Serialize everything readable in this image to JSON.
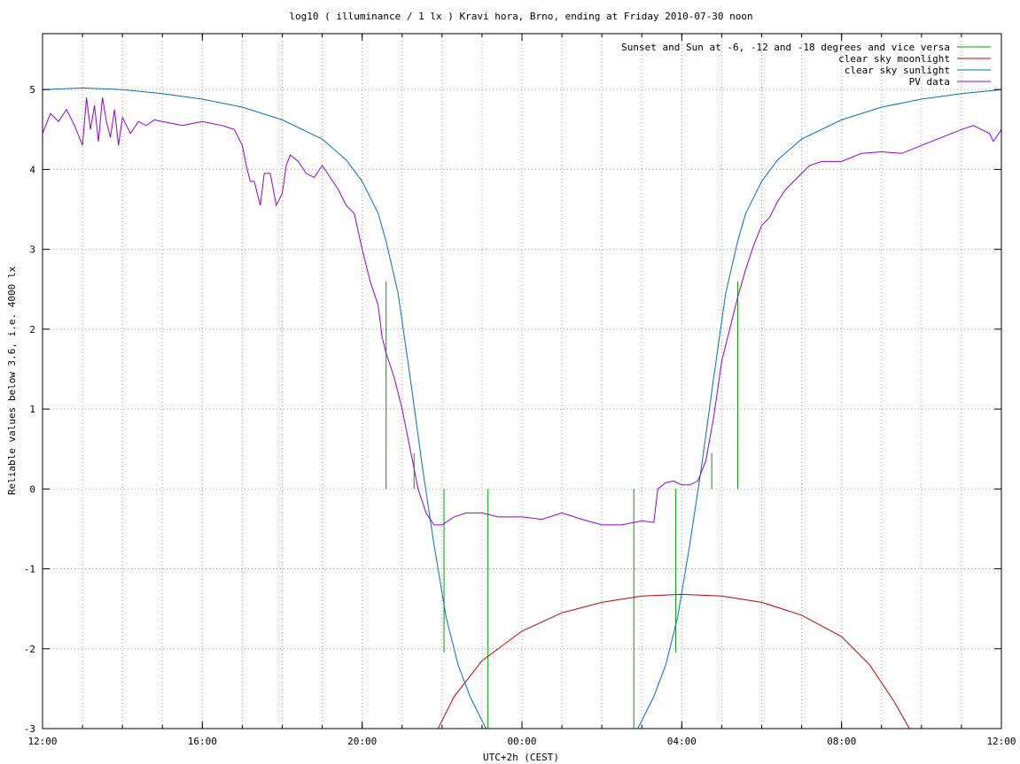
{
  "chart_data": {
    "type": "line",
    "title": "log10 ( illuminance / 1 lx ) Kravi hora, Brno, ending at Friday 2010-07-30 noon",
    "xlabel": "UTC+2h (CEST)",
    "ylabel": "Reliable values below 3.6, i.e. 4000 lx",
    "x_unit": "hour of day (12:00 to next-day 12:00)",
    "xlim": [
      12,
      36
    ],
    "ylim": [
      -3,
      5.7
    ],
    "x_ticks": [
      {
        "value": 12,
        "label": "12:00"
      },
      {
        "value": 16,
        "label": "16:00"
      },
      {
        "value": 20,
        "label": "20:00"
      },
      {
        "value": 24,
        "label": "00:00"
      },
      {
        "value": 28,
        "label": "04:00"
      },
      {
        "value": 32,
        "label": "08:00"
      },
      {
        "value": 36,
        "label": "12:00"
      }
    ],
    "y_ticks": [
      {
        "value": 5,
        "label": "5"
      },
      {
        "value": 4,
        "label": "4"
      },
      {
        "value": 3,
        "label": "3"
      },
      {
        "value": 2,
        "label": "2"
      },
      {
        "value": 1,
        "label": "1"
      },
      {
        "value": 0,
        "label": "0"
      },
      {
        "value": -1,
        "label": "-1"
      },
      {
        "value": -2,
        "label": "-2"
      },
      {
        "value": -3,
        "label": "-3"
      }
    ],
    "grid": true,
    "legend_position": "top-right",
    "series": [
      {
        "name": "Sunset and Sun at -6, -12 and -18 degrees and vice versa",
        "color": "#00a000",
        "style": "impulses",
        "points": [
          [
            20.6,
            2.6
          ],
          [
            21.3,
            0.45
          ],
          [
            22.05,
            -2.05
          ],
          [
            23.15,
            -3.0
          ],
          [
            26.8,
            -3.0
          ],
          [
            27.85,
            -2.05
          ],
          [
            28.75,
            0.45
          ],
          [
            29.4,
            2.6
          ]
        ]
      },
      {
        "name": "clear sky moonlight",
        "color": "#c00000",
        "style": "line",
        "points": [
          [
            21.9,
            -3.0
          ],
          [
            22.3,
            -2.6
          ],
          [
            23.0,
            -2.15
          ],
          [
            24.0,
            -1.78
          ],
          [
            25.0,
            -1.55
          ],
          [
            26.0,
            -1.42
          ],
          [
            27.0,
            -1.34
          ],
          [
            28.0,
            -1.32
          ],
          [
            29.0,
            -1.34
          ],
          [
            30.0,
            -1.42
          ],
          [
            31.0,
            -1.58
          ],
          [
            32.0,
            -1.85
          ],
          [
            32.7,
            -2.2
          ],
          [
            33.3,
            -2.65
          ],
          [
            33.7,
            -3.0
          ]
        ]
      },
      {
        "name": "clear sky sunlight",
        "color": "#0070c0",
        "style": "line",
        "points": [
          [
            12.0,
            5.0
          ],
          [
            13.0,
            5.02
          ],
          [
            14.0,
            5.0
          ],
          [
            15.0,
            4.95
          ],
          [
            16.0,
            4.88
          ],
          [
            17.0,
            4.78
          ],
          [
            18.0,
            4.62
          ],
          [
            19.0,
            4.38
          ],
          [
            19.6,
            4.12
          ],
          [
            20.0,
            3.85
          ],
          [
            20.4,
            3.45
          ],
          [
            20.6,
            3.1
          ],
          [
            20.9,
            2.45
          ],
          [
            21.2,
            1.4
          ],
          [
            21.5,
            0.3
          ],
          [
            21.8,
            -0.7
          ],
          [
            22.1,
            -1.6
          ],
          [
            22.4,
            -2.2
          ],
          [
            22.7,
            -2.6
          ],
          [
            23.1,
            -3.0
          ],
          [
            26.9,
            -3.0
          ],
          [
            27.3,
            -2.6
          ],
          [
            27.6,
            -2.2
          ],
          [
            27.9,
            -1.6
          ],
          [
            28.2,
            -0.7
          ],
          [
            28.5,
            0.3
          ],
          [
            28.8,
            1.4
          ],
          [
            29.1,
            2.45
          ],
          [
            29.4,
            3.1
          ],
          [
            29.6,
            3.45
          ],
          [
            30.0,
            3.85
          ],
          [
            30.4,
            4.12
          ],
          [
            31.0,
            4.38
          ],
          [
            32.0,
            4.62
          ],
          [
            33.0,
            4.78
          ],
          [
            34.0,
            4.88
          ],
          [
            35.0,
            4.95
          ],
          [
            36.0,
            5.0
          ]
        ]
      },
      {
        "name": "PV data",
        "color": "#9400d3",
        "style": "line",
        "points": [
          [
            12.0,
            4.45
          ],
          [
            12.2,
            4.7
          ],
          [
            12.4,
            4.6
          ],
          [
            12.6,
            4.75
          ],
          [
            12.8,
            4.55
          ],
          [
            13.0,
            4.3
          ],
          [
            13.1,
            4.9
          ],
          [
            13.2,
            4.5
          ],
          [
            13.3,
            4.8
          ],
          [
            13.4,
            4.35
          ],
          [
            13.5,
            4.9
          ],
          [
            13.6,
            4.6
          ],
          [
            13.7,
            4.4
          ],
          [
            13.8,
            4.75
          ],
          [
            13.9,
            4.3
          ],
          [
            14.0,
            4.65
          ],
          [
            14.2,
            4.45
          ],
          [
            14.4,
            4.6
          ],
          [
            14.6,
            4.55
          ],
          [
            14.8,
            4.62
          ],
          [
            15.0,
            4.6
          ],
          [
            15.5,
            4.55
          ],
          [
            16.0,
            4.6
          ],
          [
            16.5,
            4.55
          ],
          [
            16.8,
            4.5
          ],
          [
            17.0,
            4.3
          ],
          [
            17.1,
            4.05
          ],
          [
            17.2,
            3.85
          ],
          [
            17.3,
            3.85
          ],
          [
            17.45,
            3.55
          ],
          [
            17.55,
            3.95
          ],
          [
            17.7,
            3.95
          ],
          [
            17.85,
            3.55
          ],
          [
            18.0,
            3.7
          ],
          [
            18.1,
            4.05
          ],
          [
            18.2,
            4.18
          ],
          [
            18.4,
            4.1
          ],
          [
            18.6,
            3.95
          ],
          [
            18.8,
            3.9
          ],
          [
            19.0,
            4.05
          ],
          [
            19.2,
            3.9
          ],
          [
            19.4,
            3.75
          ],
          [
            19.6,
            3.55
          ],
          [
            19.8,
            3.45
          ],
          [
            20.0,
            3.0
          ],
          [
            20.2,
            2.6
          ],
          [
            20.4,
            2.3
          ],
          [
            20.5,
            1.9
          ],
          [
            20.6,
            1.7
          ],
          [
            20.8,
            1.4
          ],
          [
            21.0,
            1.0
          ],
          [
            21.2,
            0.5
          ],
          [
            21.4,
            0.0
          ],
          [
            21.6,
            -0.3
          ],
          [
            21.8,
            -0.45
          ],
          [
            22.0,
            -0.45
          ],
          [
            22.3,
            -0.35
          ],
          [
            22.6,
            -0.3
          ],
          [
            23.0,
            -0.3
          ],
          [
            23.4,
            -0.35
          ],
          [
            24.0,
            -0.35
          ],
          [
            24.5,
            -0.38
          ],
          [
            25.0,
            -0.3
          ],
          [
            25.5,
            -0.38
          ],
          [
            26.0,
            -0.45
          ],
          [
            26.5,
            -0.45
          ],
          [
            27.0,
            -0.4
          ],
          [
            27.3,
            -0.42
          ],
          [
            27.4,
            0.0
          ],
          [
            27.6,
            0.08
          ],
          [
            27.8,
            0.1
          ],
          [
            28.0,
            0.05
          ],
          [
            28.2,
            0.05
          ],
          [
            28.4,
            0.1
          ],
          [
            28.6,
            0.35
          ],
          [
            28.8,
            0.9
          ],
          [
            29.0,
            1.6
          ],
          [
            29.2,
            2.0
          ],
          [
            29.4,
            2.4
          ],
          [
            29.6,
            2.75
          ],
          [
            29.8,
            3.05
          ],
          [
            30.0,
            3.3
          ],
          [
            30.2,
            3.4
          ],
          [
            30.4,
            3.6
          ],
          [
            30.6,
            3.75
          ],
          [
            30.8,
            3.85
          ],
          [
            31.0,
            3.95
          ],
          [
            31.2,
            4.05
          ],
          [
            31.5,
            4.1
          ],
          [
            32.0,
            4.1
          ],
          [
            32.5,
            4.2
          ],
          [
            33.0,
            4.22
          ],
          [
            33.5,
            4.2
          ],
          [
            34.0,
            4.3
          ],
          [
            34.5,
            4.4
          ],
          [
            35.0,
            4.5
          ],
          [
            35.3,
            4.55
          ],
          [
            35.5,
            4.5
          ],
          [
            35.7,
            4.45
          ],
          [
            35.8,
            4.35
          ],
          [
            36.0,
            4.5
          ]
        ]
      }
    ]
  }
}
